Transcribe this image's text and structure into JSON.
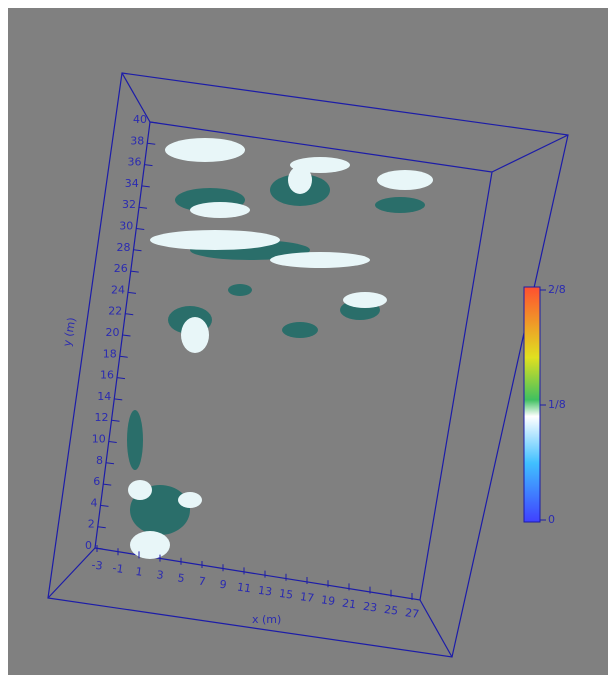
{
  "x_axis": {
    "title": "x (m)",
    "ticks": [
      -3,
      -1,
      1,
      3,
      5,
      7,
      9,
      11,
      13,
      15,
      17,
      19,
      21,
      23,
      25,
      27
    ]
  },
  "y_axis": {
    "title": "y (m)",
    "ticks": [
      0,
      2,
      4,
      6,
      8,
      10,
      12,
      14,
      16,
      18,
      20,
      22,
      24,
      26,
      28,
      30,
      32,
      34,
      36,
      38,
      40
    ]
  },
  "colorbar": {
    "labels": [
      "2/8",
      "1/8",
      "0"
    ]
  }
}
